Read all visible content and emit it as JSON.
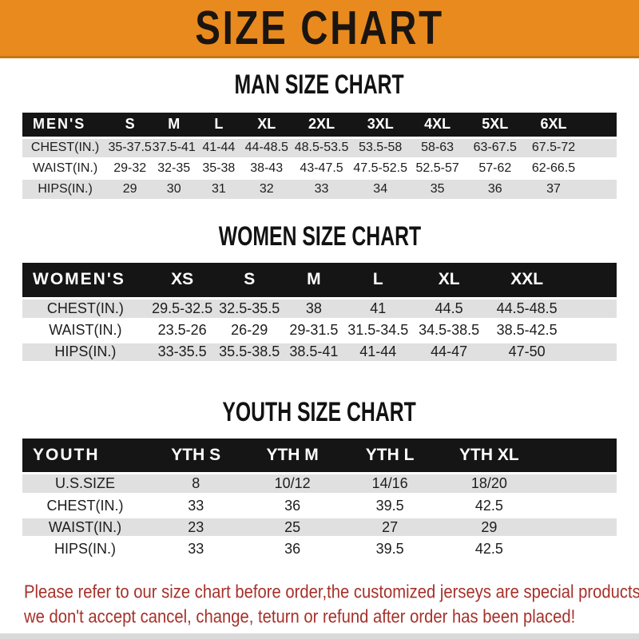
{
  "banner": {
    "title": "SIZE CHART",
    "bg_color": "#E98A1E",
    "text_color": "#1A1510"
  },
  "sections": [
    {
      "title": "MAN SIZE CHART",
      "header_label": "MEN'S",
      "columns": [
        "S",
        "M",
        "L",
        "XL",
        "2XL",
        "3XL",
        "4XL",
        "5XL",
        "6XL"
      ],
      "rows": [
        {
          "label": "CHEST(IN.)",
          "values": [
            "35-37.5",
            "37.5-41",
            "41-44",
            "44-48.5",
            "48.5-53.5",
            "53.5-58",
            "58-63",
            "63-67.5",
            "67.5-72"
          ]
        },
        {
          "label": "WAIST(IN.)",
          "values": [
            "29-32",
            "32-35",
            "35-38",
            "38-43",
            "43-47.5",
            "47.5-52.5",
            "52.5-57",
            "57-62",
            "62-66.5"
          ]
        },
        {
          "label": "HIPS(IN.)",
          "values": [
            "29",
            "30",
            "31",
            "32",
            "33",
            "34",
            "35",
            "36",
            "37"
          ]
        }
      ]
    },
    {
      "title": "WOMEN SIZE CHART",
      "header_label": "WOMEN'S",
      "columns": [
        "XS",
        "S",
        "M",
        "L",
        "XL",
        "XXL"
      ],
      "rows": [
        {
          "label": "CHEST(IN.)",
          "values": [
            "29.5-32.5",
            "32.5-35.5",
            "38",
            "41",
            "44.5",
            "44.5-48.5"
          ]
        },
        {
          "label": "WAIST(IN.)",
          "values": [
            "23.5-26",
            "26-29",
            "29-31.5",
            "31.5-34.5",
            "34.5-38.5",
            "38.5-42.5"
          ]
        },
        {
          "label": "HIPS(IN.)",
          "values": [
            "33-35.5",
            "35.5-38.5",
            "38.5-41",
            "41-44",
            "44-47",
            "47-50"
          ]
        }
      ]
    },
    {
      "title": "YOUTH SIZE CHART",
      "header_label": "YOUTH",
      "columns": [
        "YTH S",
        "YTH M",
        "YTH L",
        "YTH XL"
      ],
      "rows": [
        {
          "label": "U.S.SIZE",
          "values": [
            "8",
            "10/12",
            "14/16",
            "18/20"
          ]
        },
        {
          "label": "CHEST(IN.)",
          "values": [
            "33",
            "36",
            "39.5",
            "42.5"
          ]
        },
        {
          "label": "WAIST(IN.)",
          "values": [
            "23",
            "25",
            "27",
            "29"
          ]
        },
        {
          "label": "HIPS(IN.)",
          "values": [
            "33",
            "36",
            "39.5",
            "42.5"
          ]
        }
      ]
    }
  ],
  "footer": {
    "line1": "Please refer to our size chart before order,the customized jerseys are special products,",
    "line2": "we don't accept cancel, change, teturn or refund after order has been placed!",
    "text_color": "#A5312A"
  },
  "colors": {
    "banner_orange": "#E98A1E",
    "header_black": "#151515",
    "stripe_gray": "#E0E0E0",
    "note_red": "#A5312A"
  }
}
